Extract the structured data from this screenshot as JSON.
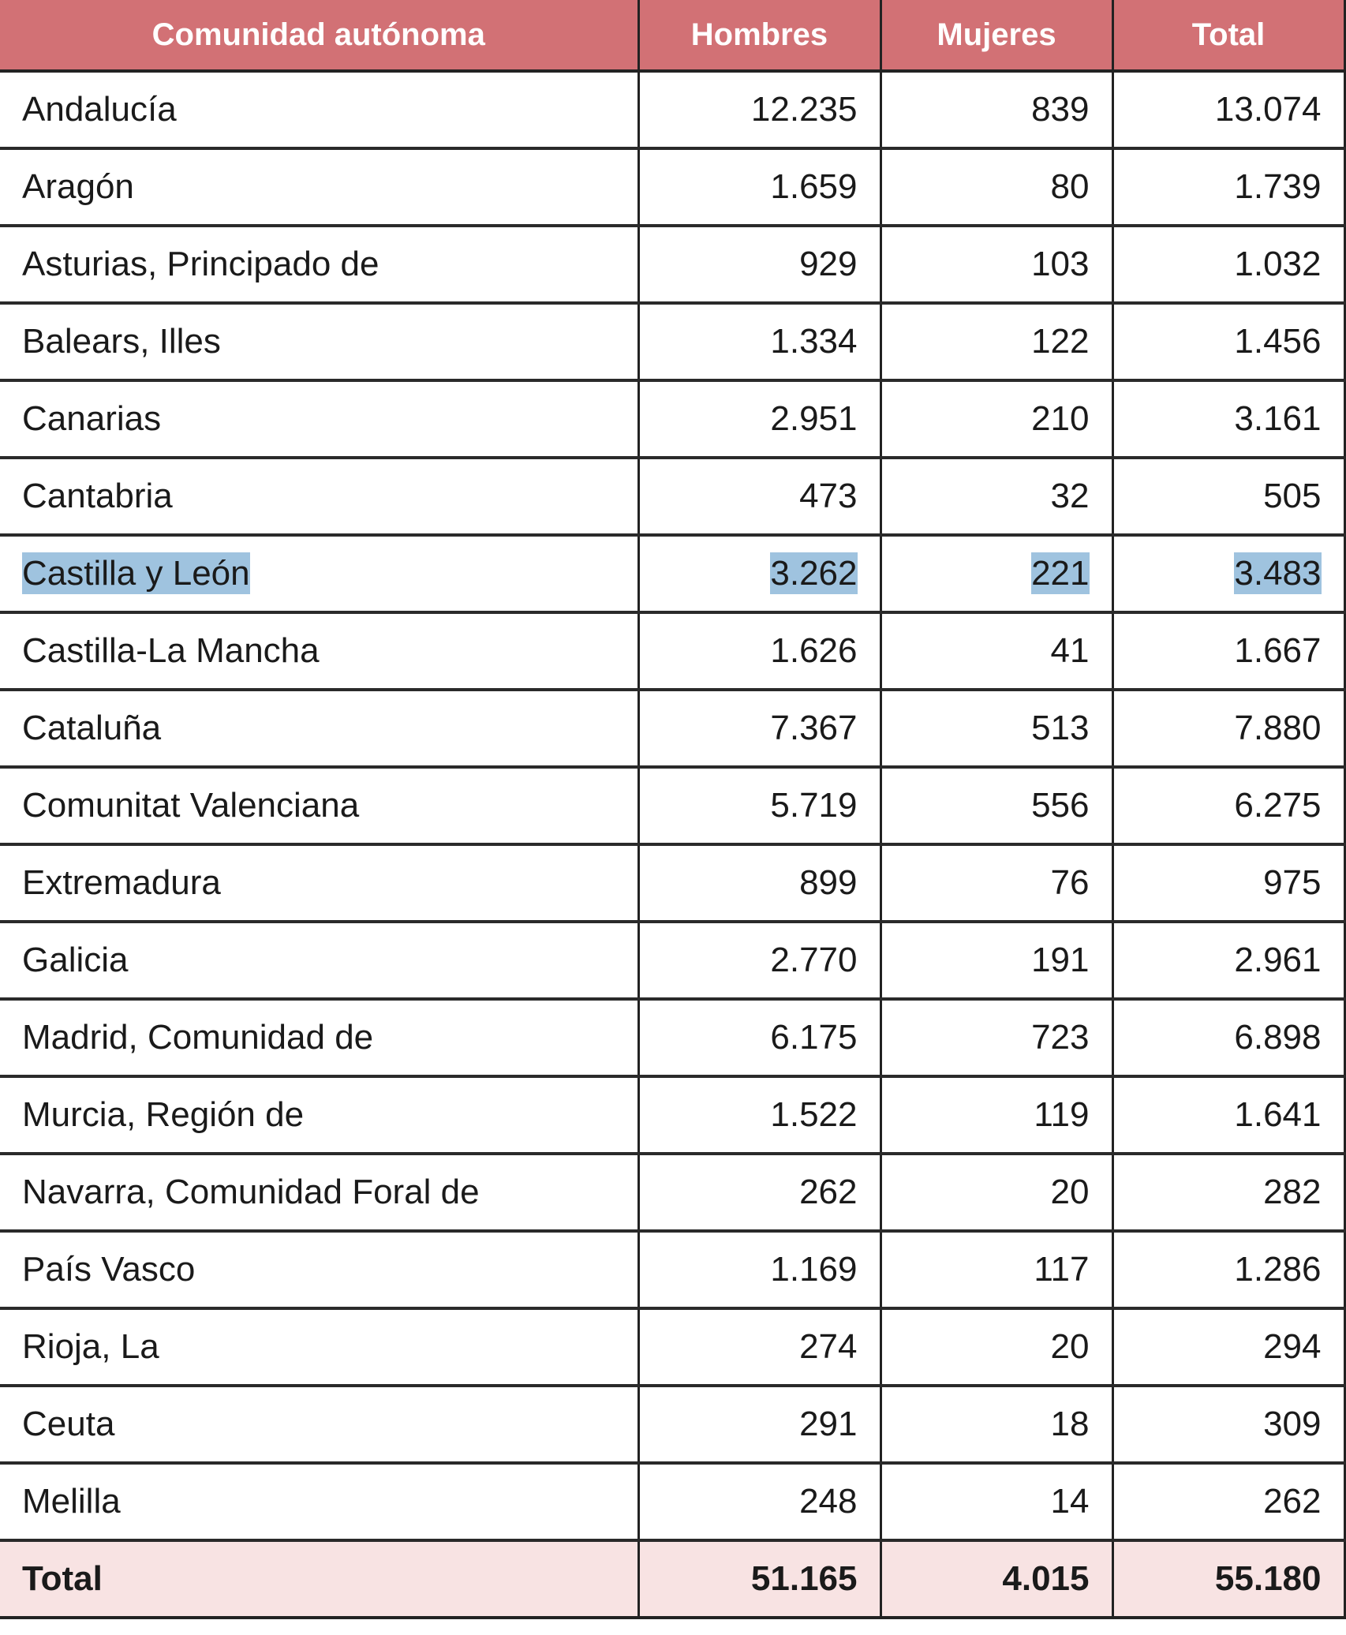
{
  "table": {
    "columns": [
      "Comunidad autónoma",
      "Hombres",
      "Mujeres",
      "Total"
    ],
    "rows": [
      {
        "region": "Andalucía",
        "hombres": "12.235",
        "mujeres": "839",
        "total": "13.074"
      },
      {
        "region": "Aragón",
        "hombres": "1.659",
        "mujeres": "80",
        "total": "1.739"
      },
      {
        "region": "Asturias, Principado de",
        "hombres": "929",
        "mujeres": "103",
        "total": "1.032"
      },
      {
        "region": "Balears, Illes",
        "hombres": "1.334",
        "mujeres": "122",
        "total": "1.456"
      },
      {
        "region": "Canarias",
        "hombres": "2.951",
        "mujeres": "210",
        "total": "3.161"
      },
      {
        "region": "Cantabria",
        "hombres": "473",
        "mujeres": "32",
        "total": "505"
      },
      {
        "region": "Castilla y León",
        "hombres": "3.262",
        "mujeres": "221",
        "total": "3.483",
        "highlighted": true
      },
      {
        "region": "Castilla-La Mancha",
        "hombres": "1.626",
        "mujeres": "41",
        "total": "1.667"
      },
      {
        "region": "Cataluña",
        "hombres": "7.367",
        "mujeres": "513",
        "total": "7.880"
      },
      {
        "region": "Comunitat Valenciana",
        "hombres": "5.719",
        "mujeres": "556",
        "total": "6.275"
      },
      {
        "region": "Extremadura",
        "hombres": "899",
        "mujeres": "76",
        "total": "975"
      },
      {
        "region": "Galicia",
        "hombres": "2.770",
        "mujeres": "191",
        "total": "2.961"
      },
      {
        "region": "Madrid, Comunidad de",
        "hombres": "6.175",
        "mujeres": "723",
        "total": "6.898"
      },
      {
        "region": "Murcia, Región de",
        "hombres": "1.522",
        "mujeres": "119",
        "total": "1.641"
      },
      {
        "region": "Navarra, Comunidad Foral de",
        "hombres": "262",
        "mujeres": "20",
        "total": "282"
      },
      {
        "region": "País Vasco",
        "hombres": "1.169",
        "mujeres": "117",
        "total": "1.286"
      },
      {
        "region": "Rioja, La",
        "hombres": "274",
        "mujeres": "20",
        "total": "294"
      },
      {
        "region": "Ceuta",
        "hombres": "291",
        "mujeres": "18",
        "total": "309"
      },
      {
        "region": "Melilla",
        "hombres": "248",
        "mujeres": "14",
        "total": "262"
      }
    ],
    "total_row": {
      "region": "Total",
      "hombres": "51.165",
      "mujeres": "4.015",
      "total": "55.180"
    }
  },
  "colors": {
    "header_bg": "#d27175",
    "header_text": "#ffffff",
    "total_row_bg": "#f8e3e3",
    "selection_highlight": "#9fc3df",
    "border": "#222222"
  }
}
